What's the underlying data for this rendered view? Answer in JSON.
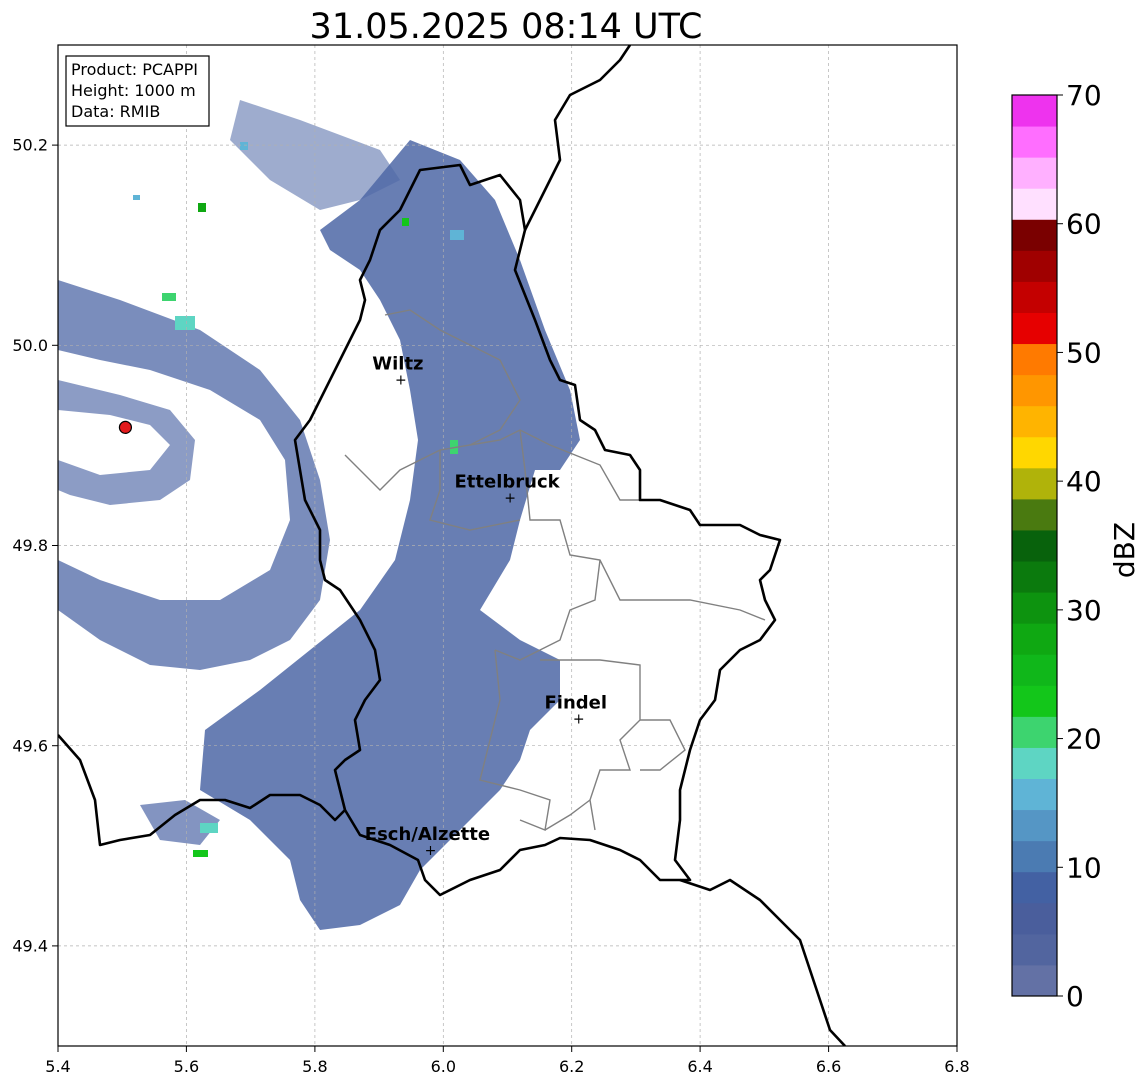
{
  "title": "31.05.2025 08:14 UTC",
  "info_box": [
    "Product: PCAPPI",
    "Height: 1000 m",
    "Data: RMIB"
  ],
  "axes": {
    "x_ticks": [
      "5.4",
      "5.6",
      "5.8",
      "6.0",
      "6.2",
      "6.4",
      "6.6",
      "6.8"
    ],
    "y_ticks": [
      "49.4",
      "49.6",
      "49.8",
      "50.0",
      "50.2"
    ],
    "xlim": [
      5.4,
      6.8
    ],
    "ylim": [
      49.3,
      50.3
    ],
    "grid": true
  },
  "radar_site": {
    "lon": 5.505,
    "lat": 49.918,
    "color": "#e31a1c"
  },
  "cities": [
    {
      "name": "Wiltz",
      "lon": 5.934,
      "lat": 49.966
    },
    {
      "name": "Ettelbruck",
      "lon": 6.104,
      "lat": 49.848
    },
    {
      "name": "Findel",
      "lon": 6.211,
      "lat": 49.627
    },
    {
      "name": "Esch/Alzette",
      "lon": 5.98,
      "lat": 49.496
    }
  ],
  "colorbar": {
    "label": "dBZ",
    "ticks": [
      "0",
      "10",
      "20",
      "30",
      "40",
      "50",
      "60",
      "70"
    ],
    "range": [
      0,
      70
    ],
    "colors": [
      "#6371a5",
      "#52659f",
      "#4a5e9c",
      "#4361a3",
      "#4b7bb2",
      "#5596c5",
      "#5fb4d6",
      "#5ed5c3",
      "#3dd46f",
      "#13c61a",
      "#10b71a",
      "#0fa812",
      "#0d930f",
      "#0b7a0d",
      "#08620c",
      "#4a7a10",
      "#b0b30a",
      "#ffd700",
      "#ffb400",
      "#ff9600",
      "#ff7a00",
      "#e60000",
      "#c40000",
      "#a00000",
      "#7a0000",
      "#ffe0ff",
      "#ffb0ff",
      "#ff6eff",
      "#ee33ee"
    ]
  },
  "reflectivity_color": "#4e67a6"
}
